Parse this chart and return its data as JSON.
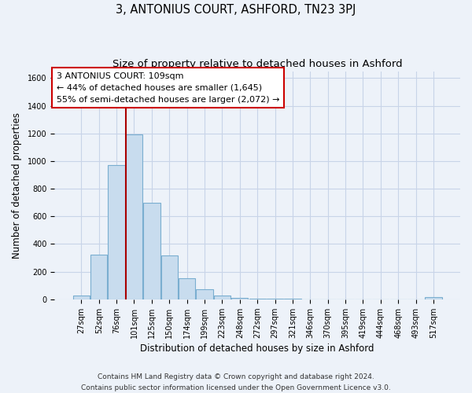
{
  "title": "3, ANTONIUS COURT, ASHFORD, TN23 3PJ",
  "subtitle": "Size of property relative to detached houses in Ashford",
  "xlabel": "Distribution of detached houses by size in Ashford",
  "ylabel": "Number of detached properties",
  "bar_labels": [
    "27sqm",
    "52sqm",
    "76sqm",
    "101sqm",
    "125sqm",
    "150sqm",
    "174sqm",
    "199sqm",
    "223sqm",
    "248sqm",
    "272sqm",
    "297sqm",
    "321sqm",
    "346sqm",
    "370sqm",
    "395sqm",
    "419sqm",
    "444sqm",
    "468sqm",
    "493sqm",
    "517sqm"
  ],
  "bar_values": [
    25,
    325,
    970,
    1195,
    700,
    315,
    150,
    75,
    25,
    10,
    5,
    3,
    2,
    1,
    1,
    1,
    1,
    1,
    1,
    1,
    15
  ],
  "bar_color": "#c8dcee",
  "bar_edge_color": "#7aaed0",
  "vline_x_index": 3,
  "annotation_text_line1": "3 ANTONIUS COURT: 109sqm",
  "annotation_text_line2": "← 44% of detached houses are smaller (1,645)",
  "annotation_text_line3": "55% of semi-detached houses are larger (2,072) →",
  "vline_color": "#aa0000",
  "box_edge_color": "#cc0000",
  "ylim": [
    0,
    1650
  ],
  "yticks": [
    0,
    200,
    400,
    600,
    800,
    1000,
    1200,
    1400,
    1600
  ],
  "footer_line1": "Contains HM Land Registry data © Crown copyright and database right 2024.",
  "footer_line2": "Contains public sector information licensed under the Open Government Licence v3.0.",
  "bg_color": "#edf2f9",
  "grid_color": "#c8d4e8",
  "title_fontsize": 10.5,
  "subtitle_fontsize": 9.5,
  "xlabel_fontsize": 8.5,
  "ylabel_fontsize": 8.5,
  "tick_fontsize": 7,
  "annotation_fontsize": 8,
  "footer_fontsize": 6.5
}
